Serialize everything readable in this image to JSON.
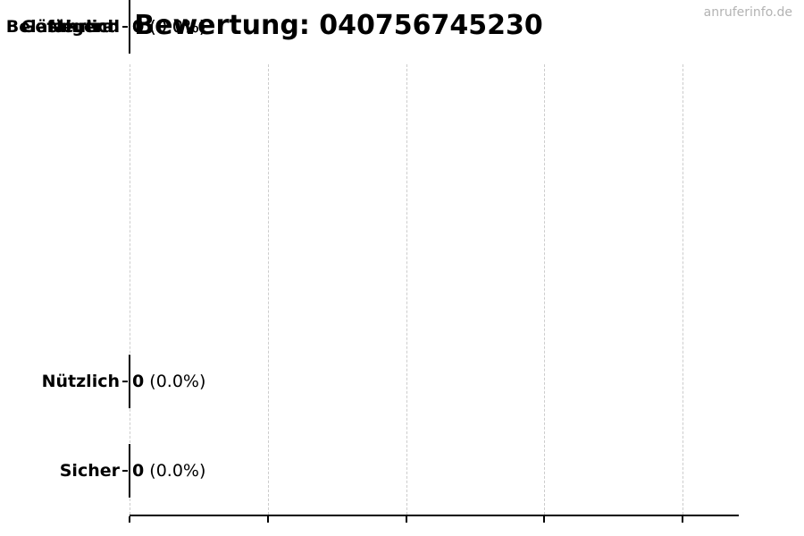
{
  "header": {
    "title": "Bewertung: 040756745230",
    "watermark": "anruferinfo.de"
  },
  "colors": {
    "background": "#ffffff",
    "text": "#000000",
    "gridline": "#cccccc",
    "watermark": "#b3b3b3",
    "axis": "#000000",
    "bar_edge": "#000000"
  },
  "chart_data": {
    "type": "bar",
    "orientation": "horizontal",
    "title": "Bewertung: 040756745230",
    "categories": [
      "Nützlich",
      "Sicher",
      "Neutral",
      "Belästigend",
      "Gefährlich"
    ],
    "values": [
      0,
      0,
      0,
      0,
      0
    ],
    "percentages": [
      0.0,
      0.0,
      0.0,
      0.0,
      0.0
    ],
    "value_labels": [
      "0 (0.0%)",
      "0 (0.0%)",
      "0 (0.0%)",
      "0 (0.0%)",
      "0 (0.0%)"
    ],
    "xlabel": "",
    "ylabel": "",
    "xlim": [
      0,
      1.1
    ],
    "x_gridline_values": [
      0,
      0.25,
      0.5,
      0.75,
      1.0
    ],
    "x_tick_labels_visible": false,
    "grid": "vertical-dashed",
    "legend_position": "none"
  },
  "rows": [
    {
      "label": "Nützlich",
      "count": "0",
      "percent": "(0.0%)"
    },
    {
      "label": "Sicher",
      "count": "0",
      "percent": "(0.0%)"
    },
    {
      "label": "Neutral",
      "count": "0",
      "percent": "(0.0%)"
    },
    {
      "label": "Belästigend",
      "count": "0",
      "percent": "(0.0%)"
    },
    {
      "label": "Gefährlich",
      "count": "0",
      "percent": "(0.0%)"
    }
  ]
}
